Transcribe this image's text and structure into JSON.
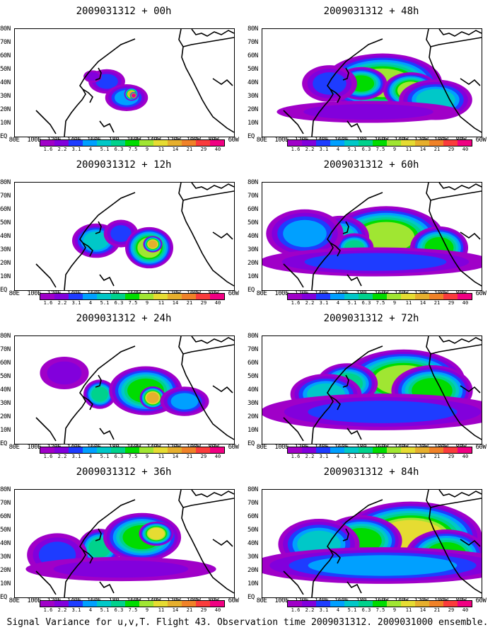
{
  "panels": [
    {
      "title": "2009031312 + 00h",
      "spread": 0.2,
      "blobs": [
        [
          130,
          58,
          30,
          20,
          2
        ],
        [
          110,
          65,
          15,
          10,
          1
        ],
        [
          158,
          35,
          35,
          22,
          3
        ],
        [
          165,
          40,
          12,
          11,
          9
        ],
        [
          168,
          38,
          6,
          6,
          12
        ]
      ]
    },
    {
      "title": "2009031312 + 48h",
      "spread": 0.8,
      "blobs": [
        [
          170,
          56,
          65,
          32,
          7
        ],
        [
          140,
          55,
          28,
          18,
          6
        ],
        [
          210,
          45,
          30,
          20,
          7
        ],
        [
          245,
          32,
          40,
          22,
          4
        ],
        [
          95,
          55,
          30,
          20,
          2
        ],
        [
          150,
          15,
          100,
          12,
          1
        ]
      ]
    },
    {
      "title": "2009031312 + 12h",
      "spread": 0.35,
      "blobs": [
        [
          115,
          50,
          35,
          25,
          4
        ],
        [
          150,
          60,
          25,
          20,
          2
        ],
        [
          190,
          40,
          35,
          30,
          7
        ],
        [
          195,
          45,
          14,
          12,
          9
        ]
      ]
    },
    {
      "title": "2009031312 + 60h",
      "spread": 0.9,
      "blobs": [
        [
          175,
          55,
          60,
          32,
          7
        ],
        [
          110,
          55,
          30,
          22,
          4
        ],
        [
          130,
          40,
          20,
          15,
          5
        ],
        [
          250,
          40,
          30,
          22,
          6
        ],
        [
          60,
          60,
          40,
          25,
          3
        ],
        [
          160,
          20,
          120,
          15,
          2
        ]
      ]
    },
    {
      "title": "2009031312 + 24h",
      "spread": 0.6,
      "blobs": [
        [
          120,
          50,
          20,
          18,
          5
        ],
        [
          185,
          55,
          45,
          30,
          6
        ],
        [
          195,
          45,
          16,
          14,
          9
        ],
        [
          240,
          40,
          30,
          18,
          3
        ],
        [
          70,
          80,
          30,
          20,
          1
        ]
      ]
    },
    {
      "title": "2009031312 + 72h",
      "spread": 1.0,
      "blobs": [
        [
          200,
          70,
          60,
          30,
          7
        ],
        [
          120,
          65,
          30,
          20,
          5
        ],
        [
          240,
          55,
          40,
          25,
          6
        ],
        [
          90,
          50,
          35,
          20,
          4
        ],
        [
          170,
          25,
          120,
          18,
          2
        ]
      ]
    },
    {
      "title": "2009031312 + 36h",
      "spread": 0.7,
      "blobs": [
        [
          120,
          50,
          25,
          22,
          5
        ],
        [
          180,
          65,
          45,
          28,
          6
        ],
        [
          200,
          70,
          20,
          14,
          8
        ],
        [
          60,
          40,
          35,
          25,
          2
        ],
        [
          150,
          20,
          110,
          14,
          1
        ]
      ]
    },
    {
      "title": "2009031312 + 84h",
      "spread": 1.0,
      "blobs": [
        [
          210,
          65,
          70,
          35,
          8
        ],
        [
          140,
          60,
          40,
          25,
          6
        ],
        [
          80,
          55,
          40,
          25,
          4
        ],
        [
          260,
          40,
          40,
          25,
          6
        ],
        [
          170,
          25,
          130,
          18,
          3
        ]
      ]
    }
  ],
  "lat_labels": [
    "80N",
    "70N",
    "60N",
    "50N",
    "40N",
    "30N",
    "20N",
    "10N",
    "EQ"
  ],
  "lon_labels": [
    "80E",
    "100E",
    "120E",
    "140E",
    "160E",
    "180",
    "160W",
    "140W",
    "120W",
    "100W",
    "80W",
    "60W"
  ],
  "colorbar": {
    "values": [
      "1.6",
      "2.2",
      "3.1",
      "4",
      "5.1",
      "6.3",
      "7.5",
      "9",
      "11",
      "14",
      "21",
      "29",
      "40"
    ],
    "colors": [
      "#a000c8",
      "#8200dc",
      "#1e3cff",
      "#00a0ff",
      "#00c8c8",
      "#00d28c",
      "#00dc00",
      "#a0e632",
      "#e6dc32",
      "#e6af2d",
      "#f08228",
      "#fa3c3c",
      "#f00082"
    ]
  },
  "footer": "Signal Variance for u,v,T. Flight 43. Observation time 2009031312. 2009031000 ensemble."
}
